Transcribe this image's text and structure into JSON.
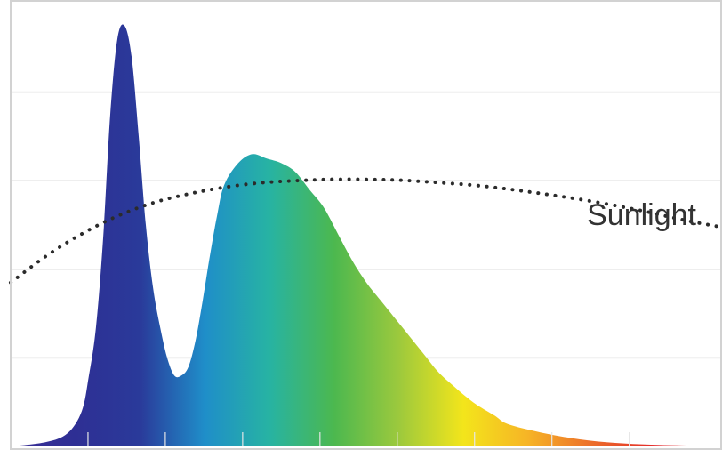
{
  "chart_data": {
    "type": "area",
    "title": "",
    "xlabel": "",
    "ylabel": "",
    "xlim": [
      0,
      100
    ],
    "ylim": [
      0,
      100
    ],
    "grid": true,
    "legend": "none",
    "annotations": [
      {
        "text": "Sunlight",
        "target": "sunlight"
      }
    ],
    "series": [
      {
        "key": "led",
        "style": "filled area with spectrum gradient (violet-blue to red)",
        "x": [
          0,
          5,
          8,
          10,
          11,
          12,
          13,
          14,
          15,
          16,
          17,
          18,
          19,
          20,
          21,
          22,
          23,
          24,
          25,
          26,
          27,
          28,
          29,
          30,
          32,
          34,
          36,
          38,
          40,
          42,
          44,
          46,
          48,
          50,
          52,
          55,
          58,
          60,
          62,
          65,
          68,
          70,
          75,
          80,
          85,
          90,
          95,
          100
        ],
        "y": [
          0,
          1,
          3,
          8,
          16,
          27,
          47,
          75,
          92,
          95,
          88,
          70,
          50,
          36,
          27,
          20,
          16,
          16,
          18,
          24,
          33,
          43,
          52,
          59,
          64,
          66,
          65,
          64,
          62,
          58,
          54,
          48,
          42,
          37,
          33,
          27,
          21,
          17,
          14,
          10,
          7,
          5,
          3,
          1.6,
          0.8,
          0.4,
          0.2,
          0
        ]
      },
      {
        "key": "sunlight",
        "style": "dotted line",
        "x": [
          0,
          5,
          10,
          15,
          20,
          25,
          30,
          35,
          40,
          45,
          50,
          55,
          60,
          65,
          70,
          75,
          80,
          85,
          90,
          95,
          100
        ],
        "y": [
          37,
          43,
          48,
          52,
          55,
          57,
          58.5,
          59.5,
          60,
          60.3,
          60.3,
          60.1,
          59.6,
          59,
          58.1,
          57,
          55.8,
          54.4,
          52.8,
          51,
          49.5
        ]
      }
    ],
    "colors": {
      "spectrum": [
        "#3b2f96",
        "#2e2f94",
        "#2a3a9a",
        "#1f8ec9",
        "#27b3a3",
        "#4cb84f",
        "#9cc93d",
        "#f3e51b",
        "#f6b426",
        "#ec6d2a",
        "#e3272a",
        "#d81f26"
      ],
      "sunlight": "#2b2b2b",
      "grid": "#dcdcdc",
      "annotation_text": "#333333"
    }
  }
}
